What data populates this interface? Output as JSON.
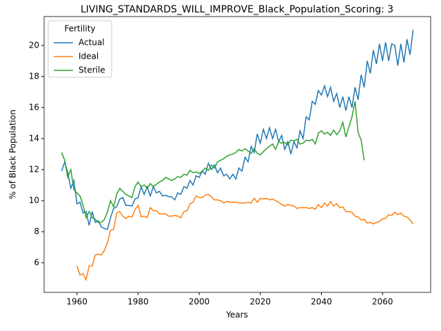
{
  "chart_data": {
    "type": "line",
    "title": "LIVING_STANDARDS_WILL_IMPROVE_Black_Population_Scoring: 3",
    "x_label": "Years",
    "y_label": "% of Black Population",
    "legend_title": "Fertility",
    "legend_position": "upper left",
    "grid": false,
    "xlim": [
      1949.25,
      2075.75
    ],
    "xticks": [
      1960,
      1980,
      2000,
      2020,
      2040,
      2060
    ],
    "ylim": [
      4.09,
      21.86
    ],
    "yticks": [
      6,
      8,
      10,
      12,
      14,
      16,
      18,
      20
    ],
    "x": [
      1955,
      1956,
      1957,
      1958,
      1959,
      1960,
      1961,
      1962,
      1963,
      1964,
      1965,
      1966,
      1967,
      1968,
      1969,
      1970,
      1971,
      1972,
      1973,
      1974,
      1975,
      1976,
      1977,
      1978,
      1979,
      1980,
      1981,
      1982,
      1983,
      1984,
      1985,
      1986,
      1987,
      1988,
      1989,
      1990,
      1991,
      1992,
      1993,
      1994,
      1995,
      1996,
      1997,
      1998,
      1999,
      2000,
      2001,
      2002,
      2003,
      2004,
      2005,
      2006,
      2007,
      2008,
      2009,
      2010,
      2011,
      2012,
      2013,
      2014,
      2015,
      2016,
      2017,
      2018,
      2019,
      2020,
      2021,
      2022,
      2023,
      2024,
      2025,
      2026,
      2027,
      2028,
      2029,
      2030,
      2031,
      2032,
      2033,
      2034,
      2035,
      2036,
      2037,
      2038,
      2039,
      2040,
      2041,
      2042,
      2043,
      2044,
      2045,
      2046,
      2047,
      2048,
      2049,
      2050,
      2051,
      2052,
      2053,
      2054,
      2055,
      2056,
      2057,
      2058,
      2059,
      2060,
      2061,
      2062,
      2063,
      2064,
      2065,
      2066,
      2067,
      2068,
      2069,
      2070
    ],
    "series": [
      {
        "name": "Actual",
        "color": "#1f77b4",
        "values": [
          11.9,
          12.5,
          11.8,
          10.8,
          11.3,
          9.8,
          9.9,
          9.2,
          9.3,
          8.4,
          9.3,
          8.6,
          8.7,
          8.3,
          8.2,
          8.15,
          8.9,
          9.5,
          9.6,
          10.1,
          10.2,
          9.7,
          9.7,
          9.65,
          10.1,
          10.2,
          10.9,
          10.4,
          10.9,
          10.3,
          10.9,
          10.5,
          10.6,
          10.3,
          10.35,
          10.25,
          10.25,
          10.05,
          10.5,
          10.4,
          10.9,
          10.8,
          11.3,
          11.0,
          11.6,
          11.5,
          11.9,
          11.7,
          12.4,
          12.0,
          12.3,
          11.8,
          12.1,
          11.6,
          11.7,
          11.4,
          11.7,
          11.4,
          12.1,
          11.9,
          12.8,
          12.5,
          13.5,
          13.1,
          14.3,
          13.7,
          14.6,
          14.0,
          14.7,
          14.0,
          14.6,
          13.8,
          14.2,
          13.3,
          13.8,
          13.0,
          13.8,
          13.4,
          14.5,
          14.0,
          15.4,
          15.2,
          16.4,
          16.2,
          17.1,
          16.8,
          17.4,
          16.7,
          17.3,
          16.4,
          16.9,
          16.0,
          16.7,
          15.8,
          16.7,
          16.0,
          17.3,
          16.5,
          18.1,
          17.3,
          19.0,
          18.2,
          19.7,
          18.8,
          20.1,
          19.0,
          20.2,
          19.0,
          20.1,
          20.0,
          18.7,
          20.1,
          18.9,
          20.4,
          19.4,
          21.0
        ]
      },
      {
        "name": "Ideal",
        "color": "#ff7f0e",
        "values": [
          null,
          null,
          null,
          null,
          null,
          5.8,
          5.2,
          5.3,
          4.9,
          5.8,
          5.8,
          6.5,
          6.55,
          6.5,
          6.8,
          7.3,
          8.1,
          8.15,
          9.2,
          9.3,
          9.0,
          8.85,
          9.0,
          8.95,
          9.4,
          9.7,
          8.95,
          9.0,
          8.9,
          9.55,
          9.35,
          9.35,
          9.15,
          9.15,
          9.15,
          9.0,
          9.0,
          9.05,
          9.0,
          8.9,
          9.3,
          9.35,
          9.8,
          9.9,
          10.3,
          10.2,
          10.2,
          10.35,
          10.4,
          10.25,
          10.05,
          10.05,
          10.0,
          9.85,
          9.95,
          9.9,
          9.9,
          9.9,
          9.85,
          9.85,
          9.85,
          9.9,
          9.85,
          10.15,
          9.9,
          10.15,
          10.1,
          10.15,
          10.05,
          10.1,
          10.0,
          9.9,
          9.75,
          9.65,
          9.75,
          9.7,
          9.65,
          9.5,
          9.55,
          9.55,
          9.55,
          9.5,
          9.55,
          9.45,
          9.75,
          9.55,
          9.85,
          9.65,
          9.95,
          9.65,
          9.8,
          9.55,
          9.6,
          9.3,
          9.3,
          9.25,
          9.0,
          8.95,
          8.75,
          8.8,
          8.55,
          8.6,
          8.5,
          8.6,
          8.65,
          8.85,
          8.85,
          9.1,
          9.05,
          9.25,
          9.1,
          9.2,
          9.0,
          8.95,
          8.75,
          8.5
        ]
      },
      {
        "name": "Sterile",
        "color": "#2ca02c",
        "values": [
          13.1,
          12.6,
          11.5,
          12.0,
          10.7,
          10.5,
          10.3,
          9.7,
          8.9,
          9.3,
          8.9,
          8.8,
          8.6,
          8.6,
          8.8,
          9.3,
          10.0,
          9.6,
          10.4,
          10.8,
          10.6,
          10.4,
          10.3,
          10.2,
          10.9,
          11.2,
          10.9,
          11.0,
          10.8,
          11.1,
          10.9,
          11.05,
          11.2,
          11.3,
          11.5,
          11.4,
          11.3,
          11.4,
          11.55,
          11.5,
          11.7,
          11.65,
          11.95,
          11.8,
          11.85,
          11.75,
          11.9,
          12.1,
          11.95,
          12.3,
          12.1,
          12.5,
          12.6,
          12.7,
          12.85,
          12.95,
          13.0,
          13.1,
          13.3,
          13.2,
          13.35,
          13.2,
          13.05,
          13.35,
          13.05,
          12.95,
          13.15,
          13.35,
          13.5,
          13.65,
          13.3,
          13.8,
          13.7,
          13.75,
          13.6,
          13.9,
          13.85,
          13.95,
          13.65,
          13.7,
          13.9,
          13.85,
          13.95,
          13.65,
          14.35,
          14.5,
          14.3,
          14.4,
          14.2,
          14.55,
          14.25,
          14.5,
          15.05,
          14.1,
          14.75,
          15.4,
          16.4,
          14.4,
          13.9,
          12.6,
          null,
          null,
          null,
          null,
          null,
          null,
          null,
          null,
          null,
          null,
          null,
          null,
          null,
          null,
          null,
          null
        ]
      }
    ]
  }
}
